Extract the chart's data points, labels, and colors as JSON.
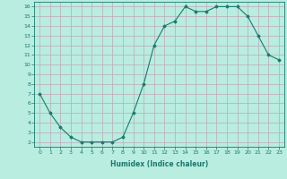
{
  "x": [
    0,
    1,
    2,
    3,
    4,
    5,
    6,
    7,
    8,
    9,
    10,
    11,
    12,
    13,
    14,
    15,
    16,
    17,
    18,
    19,
    20,
    21,
    22,
    23
  ],
  "y": [
    7,
    5,
    3.5,
    2.5,
    2,
    2,
    2,
    2,
    2.5,
    5,
    8,
    12,
    14,
    14.5,
    16,
    15.5,
    15.5,
    16,
    16,
    16,
    15,
    13,
    11,
    10.5
  ],
  "line_color": "#1a7a6e",
  "marker": "D",
  "marker_size": 1.5,
  "bg_color": "#b8ede0",
  "grid_color": "#c0a8b8",
  "tick_color": "#1a7a6e",
  "label_color": "#1a7a6e",
  "xlabel": "Humidex (Indice chaleur)",
  "ylim": [
    1.5,
    16.5
  ],
  "xlim": [
    -0.5,
    23.5
  ],
  "yticks": [
    2,
    3,
    4,
    5,
    6,
    7,
    8,
    9,
    10,
    11,
    12,
    13,
    14,
    15,
    16
  ],
  "xticks": [
    0,
    1,
    2,
    3,
    4,
    5,
    6,
    7,
    8,
    9,
    10,
    11,
    12,
    13,
    14,
    15,
    16,
    17,
    18,
    19,
    20,
    21,
    22,
    23
  ],
  "tick_fontsize": 4.5,
  "xlabel_fontsize": 5.5
}
